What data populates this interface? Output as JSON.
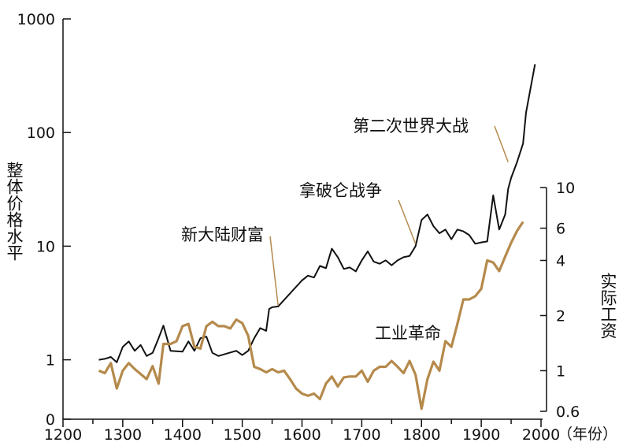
{
  "chart_data": {
    "type": "line",
    "title": "",
    "xlabel": "年份",
    "x_axis": {
      "min": 1200,
      "max": 2000,
      "ticks": [
        1200,
        1300,
        1400,
        1500,
        1600,
        1700,
        1800,
        1900,
        2000
      ],
      "tick_labels": [
        "1200",
        "1300",
        "1400",
        "1500",
        "1600",
        "1700",
        "1800",
        "1900",
        "2000"
      ],
      "unit_label": "（年份）"
    },
    "y_left": {
      "label": "整体价格水平",
      "scale": "log",
      "range": [
        0.3,
        1000
      ],
      "ticks": [
        0.3,
        1,
        10,
        100,
        1000
      ],
      "tick_labels": [
        "0",
        "1",
        "10",
        "100",
        "1000"
      ]
    },
    "y_right": {
      "label": "实际工资",
      "scale": "log",
      "range": [
        0.6,
        10
      ],
      "ticks": [
        0.6,
        1,
        2,
        4,
        6,
        10
      ],
      "tick_labels": [
        "0.6",
        "1",
        "2",
        "4",
        "6",
        "10"
      ]
    },
    "series": [
      {
        "key": "price_level",
        "axis": "left",
        "color": "#111111",
        "points": [
          [
            1260,
            1.0
          ],
          [
            1270,
            1.02
          ],
          [
            1280,
            1.06
          ],
          [
            1290,
            0.95
          ],
          [
            1300,
            1.3
          ],
          [
            1310,
            1.45
          ],
          [
            1320,
            1.2
          ],
          [
            1330,
            1.35
          ],
          [
            1340,
            1.08
          ],
          [
            1350,
            1.15
          ],
          [
            1360,
            1.55
          ],
          [
            1368,
            2.0
          ],
          [
            1380,
            1.2
          ],
          [
            1400,
            1.18
          ],
          [
            1410,
            1.45
          ],
          [
            1420,
            1.2
          ],
          [
            1430,
            1.55
          ],
          [
            1440,
            1.6
          ],
          [
            1450,
            1.15
          ],
          [
            1460,
            1.08
          ],
          [
            1490,
            1.2
          ],
          [
            1500,
            1.1
          ],
          [
            1510,
            1.2
          ],
          [
            1520,
            1.55
          ],
          [
            1530,
            1.9
          ],
          [
            1540,
            1.8
          ],
          [
            1545,
            2.8
          ],
          [
            1550,
            2.9
          ],
          [
            1560,
            2.95
          ],
          [
            1600,
            5.0
          ],
          [
            1610,
            5.5
          ],
          [
            1620,
            5.3
          ],
          [
            1630,
            6.7
          ],
          [
            1640,
            6.4
          ],
          [
            1650,
            9.5
          ],
          [
            1660,
            8.0
          ],
          [
            1670,
            6.3
          ],
          [
            1680,
            6.5
          ],
          [
            1690,
            6.0
          ],
          [
            1700,
            7.5
          ],
          [
            1710,
            9.0
          ],
          [
            1720,
            7.3
          ],
          [
            1730,
            7.0
          ],
          [
            1740,
            7.5
          ],
          [
            1750,
            6.8
          ],
          [
            1760,
            7.5
          ],
          [
            1770,
            8.0
          ],
          [
            1780,
            8.2
          ],
          [
            1790,
            10.0
          ],
          [
            1800,
            17.0
          ],
          [
            1810,
            19.0
          ],
          [
            1820,
            15.0
          ],
          [
            1830,
            13.0
          ],
          [
            1840,
            14.0
          ],
          [
            1850,
            11.5
          ],
          [
            1860,
            14.0
          ],
          [
            1870,
            13.5
          ],
          [
            1880,
            12.5
          ],
          [
            1890,
            10.5
          ],
          [
            1900,
            10.8
          ],
          [
            1910,
            11.0
          ],
          [
            1920,
            28.0
          ],
          [
            1930,
            14.0
          ],
          [
            1940,
            19.0
          ],
          [
            1945,
            32.0
          ],
          [
            1950,
            40.0
          ],
          [
            1960,
            55.0
          ],
          [
            1970,
            80.0
          ],
          [
            1975,
            150.0
          ],
          [
            1990,
            400.0
          ]
        ]
      },
      {
        "key": "real_wages",
        "axis": "right",
        "color": "#B58A4C",
        "points": [
          [
            1260,
            1.0
          ],
          [
            1270,
            0.97
          ],
          [
            1280,
            1.1
          ],
          [
            1290,
            0.8
          ],
          [
            1300,
            1.0
          ],
          [
            1310,
            1.1
          ],
          [
            1320,
            1.02
          ],
          [
            1330,
            0.96
          ],
          [
            1340,
            0.9
          ],
          [
            1350,
            1.06
          ],
          [
            1360,
            0.85
          ],
          [
            1368,
            1.4
          ],
          [
            1380,
            1.4
          ],
          [
            1390,
            1.45
          ],
          [
            1400,
            1.75
          ],
          [
            1410,
            1.8
          ],
          [
            1420,
            1.35
          ],
          [
            1430,
            1.32
          ],
          [
            1440,
            1.75
          ],
          [
            1450,
            1.85
          ],
          [
            1460,
            1.75
          ],
          [
            1470,
            1.75
          ],
          [
            1480,
            1.7
          ],
          [
            1490,
            1.9
          ],
          [
            1500,
            1.82
          ],
          [
            1510,
            1.55
          ],
          [
            1520,
            1.05
          ],
          [
            1530,
            1.02
          ],
          [
            1540,
            0.98
          ],
          [
            1550,
            1.02
          ],
          [
            1560,
            0.98
          ],
          [
            1570,
            1.0
          ],
          [
            1580,
            0.9
          ],
          [
            1590,
            0.8
          ],
          [
            1600,
            0.75
          ],
          [
            1610,
            0.73
          ],
          [
            1620,
            0.75
          ],
          [
            1630,
            0.7
          ],
          [
            1640,
            0.85
          ],
          [
            1650,
            0.93
          ],
          [
            1660,
            0.82
          ],
          [
            1670,
            0.92
          ],
          [
            1680,
            0.93
          ],
          [
            1690,
            0.93
          ],
          [
            1700,
            1.0
          ],
          [
            1710,
            0.87
          ],
          [
            1720,
            1.0
          ],
          [
            1730,
            1.05
          ],
          [
            1740,
            1.05
          ],
          [
            1750,
            1.13
          ],
          [
            1760,
            1.05
          ],
          [
            1770,
            0.97
          ],
          [
            1780,
            1.13
          ],
          [
            1790,
            0.95
          ],
          [
            1800,
            0.62
          ],
          [
            1810,
            0.9
          ],
          [
            1820,
            1.12
          ],
          [
            1830,
            1.0
          ],
          [
            1840,
            1.45
          ],
          [
            1850,
            1.35
          ],
          [
            1860,
            1.8
          ],
          [
            1870,
            2.45
          ],
          [
            1880,
            2.45
          ],
          [
            1890,
            2.55
          ],
          [
            1900,
            2.8
          ],
          [
            1910,
            4.0
          ],
          [
            1920,
            3.9
          ],
          [
            1930,
            3.5
          ],
          [
            1940,
            4.2
          ],
          [
            1950,
            5.0
          ],
          [
            1960,
            5.8
          ],
          [
            1970,
            6.5
          ]
        ]
      }
    ],
    "annotations": [
      {
        "text": "第二次世界大战",
        "target": [
          1945,
          55
        ],
        "axis": "left",
        "color": "#B58A4C"
      },
      {
        "text": "拿破仑战争",
        "target": [
          1790,
          10.5
        ],
        "axis": "left",
        "color": "#B58A4C"
      },
      {
        "text": "新大陆财富",
        "target": [
          1560,
          3.0
        ],
        "axis": "left",
        "color": "#B58A4C"
      },
      {
        "text": "工业革命",
        "target": null,
        "axis": "right",
        "color": "#B58A4C"
      }
    ]
  }
}
